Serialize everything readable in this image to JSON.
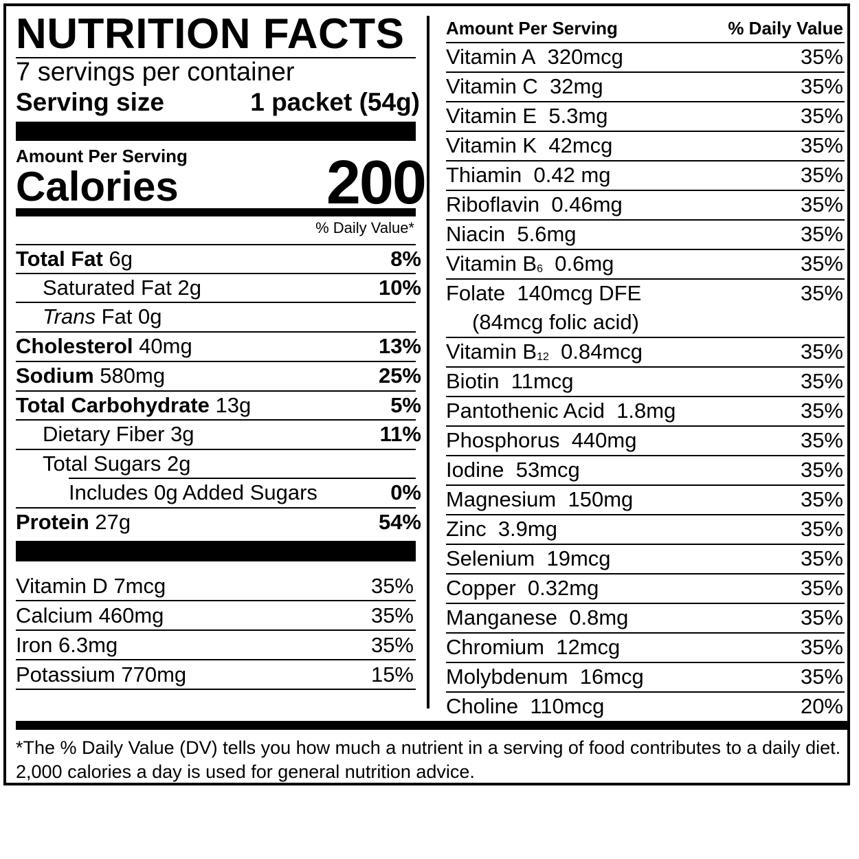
{
  "header": {
    "title": "NUTRITION FACTS",
    "servings": "7 servings per container",
    "serving_size_label": "Serving size",
    "serving_size_value": "1 packet (54g)"
  },
  "calories": {
    "amount_per_serving": "Amount Per Serving",
    "label": "Calories",
    "value": "200",
    "dv_header": "% Daily Value*"
  },
  "nutrients": [
    {
      "name": "Total Fat",
      "amount": "6g",
      "dv": "8%"
    },
    {
      "name": "Saturated Fat",
      "amount": "2g",
      "dv": "10%"
    },
    {
      "name_italic": "Trans",
      "name": "Fat",
      "amount": "0g",
      "dv": ""
    },
    {
      "name": "Cholesterol",
      "amount": "40mg",
      "dv": "13%"
    },
    {
      "name": "Sodium",
      "amount": "580mg",
      "dv": "25%"
    },
    {
      "name": "Total Carbohydrate",
      "amount": "13g",
      "dv": "5%"
    },
    {
      "name": "Dietary Fiber",
      "amount": "3g",
      "dv": "11%"
    },
    {
      "name": "Total Sugars",
      "amount": "2g",
      "dv": ""
    },
    {
      "name": "Includes 0g Added Sugars",
      "amount": "",
      "dv": "0%"
    },
    {
      "name": "Protein",
      "amount": "27g",
      "dv": "54%"
    }
  ],
  "minerals_left": [
    {
      "name": "Vitamin D",
      "amount": "7mcg",
      "dv": "35%"
    },
    {
      "name": "Calcium",
      "amount": "460mg",
      "dv": "35%"
    },
    {
      "name": "Iron",
      "amount": "6.3mg",
      "dv": "35%"
    },
    {
      "name": "Potassium",
      "amount": "770mg",
      "dv": "15%"
    }
  ],
  "right_header": {
    "amount_per_serving": "Amount Per Serving",
    "dv": "% Daily Value"
  },
  "vitamins_right": [
    {
      "name": "Vitamin A",
      "amount": "320mcg",
      "dv": "35%"
    },
    {
      "name": "Vitamin C",
      "amount": "32mg",
      "dv": "35%"
    },
    {
      "name": "Vitamin E",
      "amount": "5.3mg",
      "dv": "35%"
    },
    {
      "name": "Vitamin K",
      "amount": "42mcg",
      "dv": "35%"
    },
    {
      "name": "Thiamin",
      "amount": "0.42 mg",
      "dv": "35%"
    },
    {
      "name": "Riboflavin",
      "amount": "0.46mg",
      "dv": "35%"
    },
    {
      "name": "Niacin",
      "amount": "5.6mg",
      "dv": "35%"
    },
    {
      "name": "Vitamin B",
      "subscript": "6",
      "amount": "0.6mg",
      "dv": "35%"
    },
    {
      "name": "Folate",
      "amount": "140mcg DFE",
      "note": "(84mcg folic acid)",
      "dv": "35%"
    },
    {
      "name": "Vitamin B",
      "subscript": "12",
      "amount": "0.84mcg",
      "dv": "35%"
    },
    {
      "name": "Biotin",
      "amount": "11mcg",
      "dv": "35%"
    },
    {
      "name": "Pantothenic Acid",
      "amount": "1.8mg",
      "dv": "35%"
    },
    {
      "name": "Phosphorus",
      "amount": "440mg",
      "dv": "35%"
    },
    {
      "name": "Iodine",
      "amount": "53mcg",
      "dv": "35%"
    },
    {
      "name": "Magnesium",
      "amount": "150mg",
      "dv": "35%"
    },
    {
      "name": "Zinc",
      "amount": "3.9mg",
      "dv": "35%"
    },
    {
      "name": "Selenium",
      "amount": "19mcg",
      "dv": "35%"
    },
    {
      "name": "Copper",
      "amount": "0.32mg",
      "dv": "35%"
    },
    {
      "name": "Manganese",
      "amount": "0.8mg",
      "dv": "35%"
    },
    {
      "name": "Chromium",
      "amount": "12mcg",
      "dv": "35%"
    },
    {
      "name": "Molybdenum",
      "amount": "16mcg",
      "dv": "35%"
    },
    {
      "name": "Choline",
      "amount": "110mcg",
      "dv": "20%"
    }
  ],
  "footnote": "*The % Daily Value (DV) tells you how much a nutrient in a serving of food contributes to a daily diet. 2,000 calories a day is used for general nutrition advice."
}
